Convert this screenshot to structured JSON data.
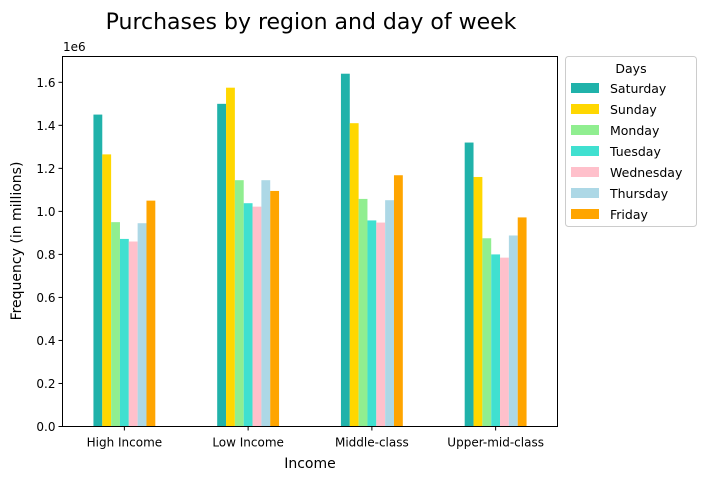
{
  "chart_data": {
    "type": "bar",
    "title": "Purchases by region and day of week",
    "xlabel": "Income",
    "ylabel": "Frequency (in millions)",
    "offset_label": "1e6",
    "categories": [
      "High Income",
      "Low Income",
      "Middle-class",
      "Upper-mid-class"
    ],
    "ylim": [
      0,
      1720000
    ],
    "yticks": [
      0,
      200000,
      400000,
      600000,
      800000,
      1000000,
      1200000,
      1400000,
      1600000
    ],
    "ytick_labels": [
      "0.0",
      "0.2",
      "0.4",
      "0.6",
      "0.8",
      "1.0",
      "1.2",
      "1.4",
      "1.6"
    ],
    "grid": false,
    "legend": {
      "title": "Days",
      "placement": "outside-right-top"
    },
    "series": [
      {
        "name": "Saturday",
        "color": "#20b2aa",
        "values": [
          1450000,
          1500000,
          1640000,
          1320000
        ]
      },
      {
        "name": "Sunday",
        "color": "#ffd700",
        "values": [
          1265000,
          1575000,
          1410000,
          1160000
        ]
      },
      {
        "name": "Monday",
        "color": "#90ee90",
        "values": [
          950000,
          1145000,
          1058000,
          875000
        ]
      },
      {
        "name": "Tuesday",
        "color": "#40e0d0",
        "values": [
          872000,
          1038000,
          958000,
          800000
        ]
      },
      {
        "name": "Wednesday",
        "color": "#ffc0cb",
        "values": [
          860000,
          1022000,
          948000,
          785000
        ]
      },
      {
        "name": "Thursday",
        "color": "#add8e6",
        "values": [
          945000,
          1145000,
          1052000,
          888000
        ]
      },
      {
        "name": "Friday",
        "color": "#ffa500",
        "values": [
          1050000,
          1095000,
          1168000,
          972000
        ]
      }
    ]
  }
}
